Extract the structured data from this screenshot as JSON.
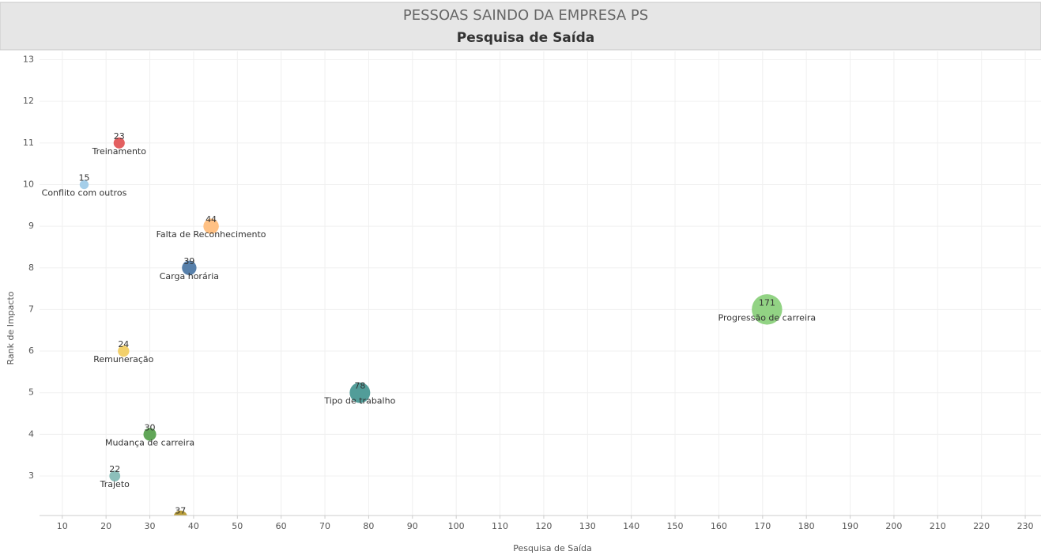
{
  "chart_data": {
    "type": "scatter",
    "title": "PESSOAS SAINDO DA EMPRESA PS",
    "subtitle": "Pesquisa de Saída",
    "x_label": "Pesquisa de Saída",
    "y_label": "Rank de Impacto",
    "categories": [
      "Treinamento",
      "Conflito com outros",
      "Falta de Reconhecimento",
      "Carga horária",
      "Progressão de carreira",
      "Remuneração",
      "Tipo de trabalho",
      "Mudança de carreira",
      "Trajeto",
      null
    ],
    "x": [
      23,
      15,
      44,
      39,
      171,
      24,
      78,
      30,
      22,
      37
    ],
    "values": [
      11,
      10,
      9,
      8,
      7,
      6,
      5,
      4,
      3,
      2
    ],
    "colors": [
      "#e15759",
      "#a0cbe8",
      "#ffbe7d",
      "#4e79a7",
      "#8cd17d",
      "#f1ce63",
      "#499894",
      "#59a14f",
      "#86bcb6",
      "#b6992d"
    ],
    "xlim": [
      4.8,
      233.6
    ],
    "ylim": [
      2.05,
      13.2
    ],
    "xticks": [
      10,
      20,
      30,
      40,
      50,
      60,
      70,
      80,
      90,
      100,
      110,
      120,
      130,
      140,
      150,
      160,
      170,
      180,
      190,
      200,
      210,
      220,
      230
    ],
    "yticks": [
      3,
      4,
      5,
      6,
      7,
      8,
      9,
      10,
      11,
      12,
      13
    ],
    "grid": true
  }
}
